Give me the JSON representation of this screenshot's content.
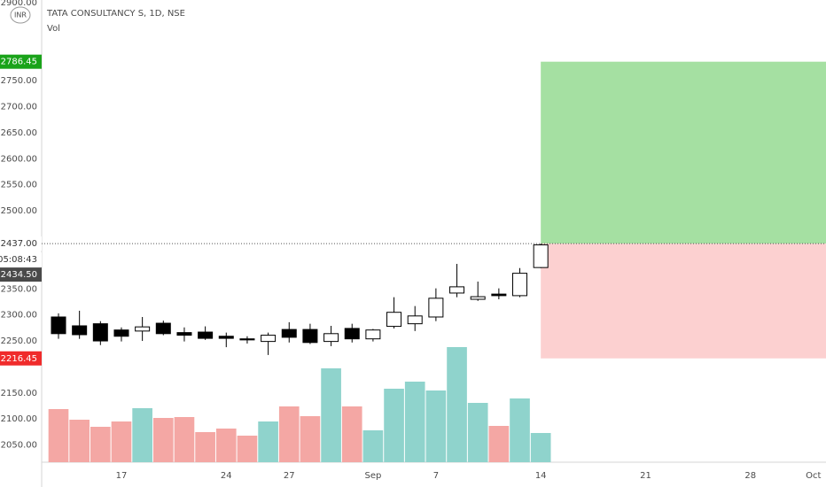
{
  "chart_data": {
    "type": "candlestick",
    "title": "TATA CONSULTANCY S, 1D, NSE",
    "volume_label": "Vol",
    "currency": "INR",
    "categories": [
      null,
      null,
      null,
      "17",
      null,
      null,
      null,
      null,
      "24",
      null,
      null,
      "27",
      null,
      null,
      null,
      "Sep",
      null,
      null,
      "7",
      null,
      null,
      null,
      null,
      "14",
      null,
      null,
      null,
      null,
      "21",
      null,
      null,
      null,
      null,
      "28",
      null,
      null,
      "Oct"
    ],
    "open": [
      2296,
      2279,
      2283,
      2271,
      2269,
      2284,
      2266,
      2267,
      2259,
      2254,
      2249,
      2272,
      2272,
      2249,
      2274,
      2254,
      2278,
      2283,
      2296,
      2342,
      2330,
      2340,
      2337,
      2391,
      null,
      null,
      null,
      null,
      null,
      null,
      null,
      null,
      null,
      null,
      null,
      null,
      null
    ],
    "high": [
      2303,
      2308,
      2288,
      2276,
      2296,
      2289,
      2276,
      2278,
      2266,
      2259,
      2266,
      2286,
      2283,
      2279,
      2283,
      2273,
      2334,
      2317,
      2351,
      2398,
      2364,
      2351,
      2390,
      2437,
      null,
      null,
      null,
      null,
      null,
      null,
      null,
      null,
      null,
      null,
      null,
      null,
      null
    ],
    "low": [
      2254,
      2254,
      2242,
      2249,
      2250,
      2261,
      2249,
      2252,
      2238,
      2245,
      2223,
      2247,
      2244,
      2240,
      2247,
      2249,
      2274,
      2269,
      2288,
      2334,
      2327,
      2330,
      2334,
      2390,
      null,
      null,
      null,
      null,
      null,
      null,
      null,
      null,
      null,
      null,
      null,
      null,
      null
    ],
    "close": [
      2264,
      2262,
      2250,
      2259,
      2277,
      2264,
      2261,
      2255,
      2255,
      2252,
      2261,
      2257,
      2247,
      2264,
      2254,
      2271,
      2305,
      2298,
      2332,
      2354,
      2335,
      2337,
      2380,
      2434.5,
      null,
      null,
      null,
      null,
      null,
      null,
      null,
      null,
      null,
      null,
      null,
      null,
      null
    ],
    "up_color": "#ffffff",
    "down_color": "#000000",
    "volume": {
      "values": [
        60,
        48,
        40,
        46,
        61,
        50,
        51,
        34,
        38,
        30,
        46,
        63,
        52,
        106,
        63,
        36,
        83,
        91,
        81,
        130,
        67,
        41,
        72,
        33,
        null,
        null,
        null,
        null,
        null,
        null,
        null,
        null,
        null,
        null,
        null,
        null,
        null
      ],
      "ylim": [
        0,
        150
      ],
      "up_color": "#8fd3cc",
      "down_color": "#f4a7a4"
    },
    "ylim": [
      2017,
      2905
    ],
    "yticks": [
      {
        "value": 2900,
        "label": "2900.00"
      },
      {
        "value": 2750,
        "label": "2750.00"
      },
      {
        "value": 2700,
        "label": "2700.00"
      },
      {
        "value": 2650,
        "label": "2650.00"
      },
      {
        "value": 2600,
        "label": "2600.00"
      },
      {
        "value": 2550,
        "label": "2550.00"
      },
      {
        "value": 2500,
        "label": "2500.00"
      },
      {
        "value": 2350,
        "label": "2350.00"
      },
      {
        "value": 2300,
        "label": "2300.00"
      },
      {
        "value": 2250,
        "label": "2250.00"
      },
      {
        "value": 2150,
        "label": "2150.00"
      },
      {
        "value": 2100,
        "label": "2100.00"
      },
      {
        "value": 2050,
        "label": "2050.00"
      }
    ],
    "grid": false,
    "position": {
      "target": 2786.45,
      "entry": {
        "value": 2437,
        "label": "2437.00"
      },
      "stop": 2216.45,
      "profit_color": "#a5e0a2",
      "loss_color": "#fcd0d0",
      "target_color": "#1aa31a",
      "stop_color": "#f02b2b"
    },
    "last_price": {
      "value": 2434.5,
      "label": "2434.50"
    },
    "countdown": "05:08:43"
  }
}
